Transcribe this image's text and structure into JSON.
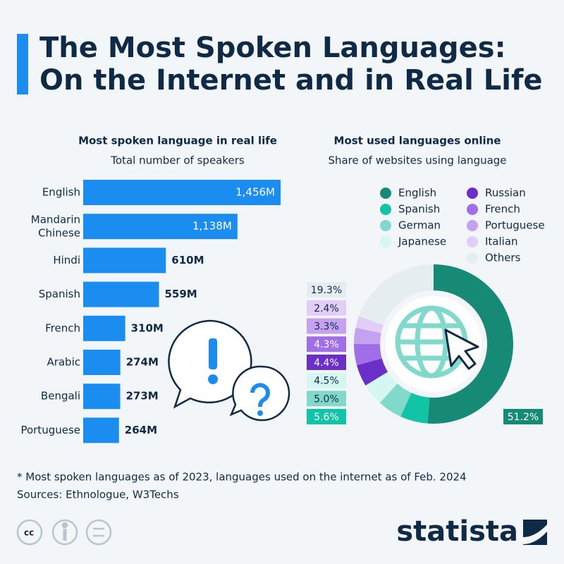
{
  "title_lines": [
    "The Most Spoken Languages:",
    "On the Internet and in Real Life"
  ],
  "chart_data": [
    {
      "type": "bar",
      "orientation": "horizontal",
      "title": "Most spoken language in real life",
      "subtitle": "Total number of speakers",
      "categories": [
        "English",
        "Mandarin Chinese",
        "Hindi",
        "Spanish",
        "French",
        "Arabic",
        "Bengali",
        "Portuguese"
      ],
      "values": [
        1456,
        1138,
        610,
        559,
        310,
        274,
        273,
        264
      ],
      "value_labels": [
        "1,456M",
        "1,138M",
        "610M",
        "559M",
        "310M",
        "274M",
        "273M",
        "264M"
      ],
      "color": "#1b8cf0"
    },
    {
      "type": "donut",
      "title": "Most used languages online",
      "subtitle": "Share of websites using language",
      "categories": [
        "English",
        "Spanish",
        "German",
        "Japanese",
        "Russian",
        "French",
        "Portuguese",
        "Italian",
        "Others"
      ],
      "values": [
        51.2,
        5.6,
        5.0,
        4.5,
        4.4,
        4.3,
        3.3,
        2.4,
        19.3
      ],
      "value_labels": [
        "51.2%",
        "5.6%",
        "5.0%",
        "4.5%",
        "4.4%",
        "4.3%",
        "3.3%",
        "2.4%",
        "19.3%"
      ],
      "colors": [
        "#178a76",
        "#12c3a6",
        "#80d9ca",
        "#d5f6f1",
        "#6b2fc9",
        "#a06ee8",
        "#c5a2ef",
        "#e1cdf5",
        "#e5edf1"
      ]
    }
  ],
  "footnote": "* Most spoken languages as of 2023, languages used on the internet as of Feb. 2024",
  "sources": "Sources: Ethnologue, W3Techs",
  "brand": "statista"
}
